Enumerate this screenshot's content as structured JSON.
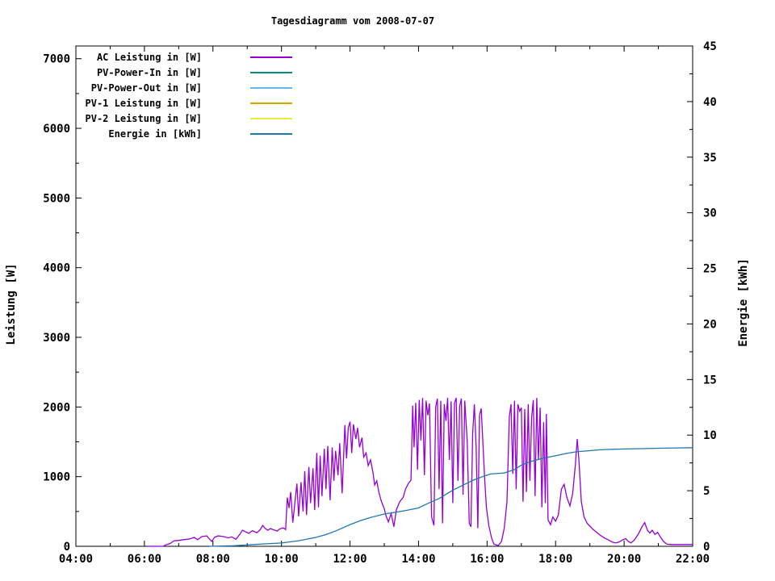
{
  "title": "Tagesdiagramm vom 2008-07-07",
  "chart_data": {
    "type": "line",
    "title": "Tagesdiagramm vom 2008-07-07",
    "legend_position": "top-left",
    "grid": false,
    "x_axis": {
      "label": "",
      "unit": "time",
      "range_hours": [
        4,
        22
      ],
      "tick_hours": [
        4,
        6,
        8,
        10,
        12,
        14,
        16,
        18,
        20,
        22
      ],
      "tick_labels": [
        "04:00",
        "06:00",
        "08:00",
        "10:00",
        "12:00",
        "14:00",
        "16:00",
        "18:00",
        "20:00",
        "22:00"
      ],
      "minor_tick_hours": [
        5,
        7,
        9,
        11,
        13,
        15,
        17,
        19,
        21
      ]
    },
    "y_left": {
      "label": "Leistung [W]",
      "range": [
        0,
        7182
      ],
      "tick_values": [
        0,
        1000,
        2000,
        3000,
        4000,
        5000,
        6000,
        7000
      ],
      "tick_labels": [
        "0",
        "1000",
        "2000",
        "3000",
        "4000",
        "5000",
        "6000",
        "7000"
      ],
      "minor_step": 500
    },
    "y_right": {
      "label": "Energie [kWh]",
      "range": [
        0,
        45
      ],
      "tick_values": [
        0,
        5,
        10,
        15,
        20,
        25,
        30,
        35,
        40,
        45
      ],
      "tick_labels": [
        "0",
        "5",
        "10",
        "15",
        "20",
        "25",
        "30",
        "35",
        "40",
        "45"
      ],
      "minor_step": 2.5
    },
    "series": [
      {
        "name": "AC Leistung in [W]",
        "color": "#9400d3",
        "axis": "left",
        "points": [
          [
            6.08,
            0
          ],
          [
            6.55,
            0
          ],
          [
            6.62,
            20
          ],
          [
            6.75,
            40
          ],
          [
            6.87,
            80
          ],
          [
            7.0,
            85
          ],
          [
            7.15,
            95
          ],
          [
            7.33,
            105
          ],
          [
            7.45,
            130
          ],
          [
            7.55,
            95
          ],
          [
            7.68,
            140
          ],
          [
            7.82,
            150
          ],
          [
            7.96,
            70
          ],
          [
            8.05,
            130
          ],
          [
            8.15,
            150
          ],
          [
            8.3,
            140
          ],
          [
            8.45,
            120
          ],
          [
            8.55,
            135
          ],
          [
            8.67,
            100
          ],
          [
            8.78,
            170
          ],
          [
            8.86,
            230
          ],
          [
            8.95,
            210
          ],
          [
            9.05,
            185
          ],
          [
            9.15,
            225
          ],
          [
            9.28,
            195
          ],
          [
            9.38,
            240
          ],
          [
            9.45,
            300
          ],
          [
            9.52,
            260
          ],
          [
            9.6,
            230
          ],
          [
            9.68,
            255
          ],
          [
            9.78,
            235
          ],
          [
            9.88,
            220
          ],
          [
            9.95,
            250
          ],
          [
            10.05,
            265
          ],
          [
            10.12,
            240
          ],
          [
            10.17,
            700
          ],
          [
            10.22,
            550
          ],
          [
            10.27,
            780
          ],
          [
            10.33,
            340
          ],
          [
            10.4,
            660
          ],
          [
            10.45,
            900
          ],
          [
            10.5,
            430
          ],
          [
            10.57,
            920
          ],
          [
            10.63,
            500
          ],
          [
            10.68,
            1080
          ],
          [
            10.73,
            450
          ],
          [
            10.8,
            1140
          ],
          [
            10.85,
            620
          ],
          [
            10.92,
            1120
          ],
          [
            10.97,
            520
          ],
          [
            11.03,
            1340
          ],
          [
            11.08,
            560
          ],
          [
            11.13,
            1300
          ],
          [
            11.18,
            720
          ],
          [
            11.25,
            1400
          ],
          [
            11.3,
            820
          ],
          [
            11.35,
            1440
          ],
          [
            11.42,
            660
          ],
          [
            11.48,
            1420
          ],
          [
            11.53,
            940
          ],
          [
            11.58,
            1370
          ],
          [
            11.65,
            1020
          ],
          [
            11.7,
            1480
          ],
          [
            11.77,
            760
          ],
          [
            11.85,
            1740
          ],
          [
            11.9,
            1260
          ],
          [
            11.95,
            1700
          ],
          [
            12.0,
            1790
          ],
          [
            12.05,
            1340
          ],
          [
            12.1,
            1750
          ],
          [
            12.17,
            1540
          ],
          [
            12.22,
            1700
          ],
          [
            12.28,
            1420
          ],
          [
            12.35,
            1560
          ],
          [
            12.4,
            1280
          ],
          [
            12.47,
            1340
          ],
          [
            12.53,
            1160
          ],
          [
            12.6,
            1240
          ],
          [
            12.67,
            1060
          ],
          [
            12.72,
            880
          ],
          [
            12.78,
            940
          ],
          [
            12.85,
            760
          ],
          [
            12.92,
            640
          ],
          [
            13.0,
            540
          ],
          [
            13.05,
            440
          ],
          [
            13.12,
            350
          ],
          [
            13.2,
            470
          ],
          [
            13.28,
            280
          ],
          [
            13.35,
            520
          ],
          [
            13.45,
            640
          ],
          [
            13.55,
            700
          ],
          [
            13.62,
            820
          ],
          [
            13.7,
            900
          ],
          [
            13.78,
            950
          ],
          [
            13.83,
            2020
          ],
          [
            13.87,
            1420
          ],
          [
            13.92,
            2060
          ],
          [
            13.97,
            1100
          ],
          [
            14.02,
            2100
          ],
          [
            14.07,
            1520
          ],
          [
            14.12,
            2130
          ],
          [
            14.17,
            1020
          ],
          [
            14.22,
            2090
          ],
          [
            14.27,
            1880
          ],
          [
            14.32,
            2050
          ],
          [
            14.38,
            420
          ],
          [
            14.45,
            300
          ],
          [
            14.5,
            2000
          ],
          [
            14.55,
            2120
          ],
          [
            14.6,
            820
          ],
          [
            14.65,
            2090
          ],
          [
            14.7,
            330
          ],
          [
            14.75,
            2040
          ],
          [
            14.8,
            1800
          ],
          [
            14.85,
            2130
          ],
          [
            14.9,
            1240
          ],
          [
            14.95,
            2080
          ],
          [
            15.0,
            620
          ],
          [
            15.05,
            2060
          ],
          [
            15.1,
            2130
          ],
          [
            15.15,
            940
          ],
          [
            15.2,
            2010
          ],
          [
            15.25,
            2120
          ],
          [
            15.3,
            740
          ],
          [
            15.35,
            2090
          ],
          [
            15.42,
            1520
          ],
          [
            15.48,
            330
          ],
          [
            15.53,
            280
          ],
          [
            15.58,
            1620
          ],
          [
            15.63,
            2040
          ],
          [
            15.68,
            1420
          ],
          [
            15.73,
            260
          ],
          [
            15.78,
            1880
          ],
          [
            15.83,
            1980
          ],
          [
            15.88,
            1480
          ],
          [
            15.93,
            960
          ],
          [
            15.98,
            560
          ],
          [
            16.05,
            300
          ],
          [
            16.13,
            120
          ],
          [
            16.2,
            30
          ],
          [
            16.33,
            10
          ],
          [
            16.42,
            70
          ],
          [
            16.5,
            260
          ],
          [
            16.58,
            640
          ],
          [
            16.65,
            1860
          ],
          [
            16.7,
            2040
          ],
          [
            16.75,
            1040
          ],
          [
            16.8,
            2090
          ],
          [
            16.85,
            820
          ],
          [
            16.9,
            2040
          ],
          [
            16.95,
            1940
          ],
          [
            17.0,
            1990
          ],
          [
            17.05,
            640
          ],
          [
            17.1,
            1970
          ],
          [
            17.15,
            780
          ],
          [
            17.2,
            2040
          ],
          [
            17.25,
            940
          ],
          [
            17.3,
            1840
          ],
          [
            17.35,
            2100
          ],
          [
            17.4,
            720
          ],
          [
            17.45,
            2130
          ],
          [
            17.5,
            1240
          ],
          [
            17.55,
            1990
          ],
          [
            17.6,
            560
          ],
          [
            17.65,
            1780
          ],
          [
            17.7,
            620
          ],
          [
            17.73,
            1900
          ],
          [
            17.78,
            380
          ],
          [
            17.85,
            310
          ],
          [
            17.92,
            420
          ],
          [
            18.0,
            360
          ],
          [
            18.08,
            450
          ],
          [
            18.17,
            820
          ],
          [
            18.25,
            890
          ],
          [
            18.33,
            700
          ],
          [
            18.42,
            580
          ],
          [
            18.5,
            760
          ],
          [
            18.58,
            1180
          ],
          [
            18.63,
            1540
          ],
          [
            18.68,
            1240
          ],
          [
            18.75,
            640
          ],
          [
            18.83,
            420
          ],
          [
            18.92,
            330
          ],
          [
            19.0,
            290
          ],
          [
            19.1,
            240
          ],
          [
            19.2,
            200
          ],
          [
            19.3,
            160
          ],
          [
            19.42,
            120
          ],
          [
            19.55,
            90
          ],
          [
            19.65,
            60
          ],
          [
            19.75,
            50
          ],
          [
            19.85,
            60
          ],
          [
            19.95,
            90
          ],
          [
            20.05,
            110
          ],
          [
            20.12,
            70
          ],
          [
            20.2,
            50
          ],
          [
            20.3,
            90
          ],
          [
            20.42,
            180
          ],
          [
            20.52,
            280
          ],
          [
            20.6,
            340
          ],
          [
            20.68,
            230
          ],
          [
            20.75,
            190
          ],
          [
            20.82,
            230
          ],
          [
            20.9,
            170
          ],
          [
            20.98,
            200
          ],
          [
            21.05,
            140
          ],
          [
            21.15,
            70
          ],
          [
            21.25,
            30
          ],
          [
            21.4,
            25
          ],
          [
            21.6,
            25
          ],
          [
            21.8,
            25
          ],
          [
            22.0,
            25
          ]
        ]
      },
      {
        "name": "PV-Power-In in [W]",
        "color": "#008b8b",
        "axis": "left",
        "points": []
      },
      {
        "name": "PV-Power-Out in [W]",
        "color": "#5db9e9",
        "axis": "left",
        "points": []
      },
      {
        "name": "PV-1 Leistung in [W]",
        "color": "#d9a400",
        "axis": "left",
        "points": []
      },
      {
        "name": "PV-2 Leistung in [W]",
        "color": "#efe93f",
        "axis": "left",
        "points": []
      },
      {
        "name": "Energie in [kWh]",
        "color": "#1f77ae",
        "axis": "right",
        "points": [
          [
            7.9,
            0
          ],
          [
            8.6,
            0.05
          ],
          [
            9.0,
            0.12
          ],
          [
            9.5,
            0.22
          ],
          [
            10.0,
            0.3
          ],
          [
            10.5,
            0.5
          ],
          [
            11.0,
            0.8
          ],
          [
            11.3,
            1.05
          ],
          [
            11.6,
            1.4
          ],
          [
            12.0,
            1.95
          ],
          [
            12.3,
            2.3
          ],
          [
            12.6,
            2.6
          ],
          [
            13.0,
            2.9
          ],
          [
            13.3,
            3.05
          ],
          [
            13.6,
            3.2
          ],
          [
            14.0,
            3.45
          ],
          [
            14.3,
            3.9
          ],
          [
            14.6,
            4.3
          ],
          [
            15.0,
            5.05
          ],
          [
            15.3,
            5.5
          ],
          [
            15.6,
            5.95
          ],
          [
            15.9,
            6.3
          ],
          [
            16.1,
            6.5
          ],
          [
            16.5,
            6.6
          ],
          [
            16.8,
            6.9
          ],
          [
            17.0,
            7.3
          ],
          [
            17.3,
            7.65
          ],
          [
            17.6,
            7.9
          ],
          [
            18.0,
            8.15
          ],
          [
            18.3,
            8.35
          ],
          [
            18.6,
            8.5
          ],
          [
            19.0,
            8.6
          ],
          [
            19.3,
            8.68
          ],
          [
            19.6,
            8.72
          ],
          [
            20.0,
            8.75
          ],
          [
            20.5,
            8.78
          ],
          [
            21.0,
            8.82
          ],
          [
            21.5,
            8.85
          ],
          [
            22.0,
            8.87
          ]
        ]
      }
    ]
  }
}
